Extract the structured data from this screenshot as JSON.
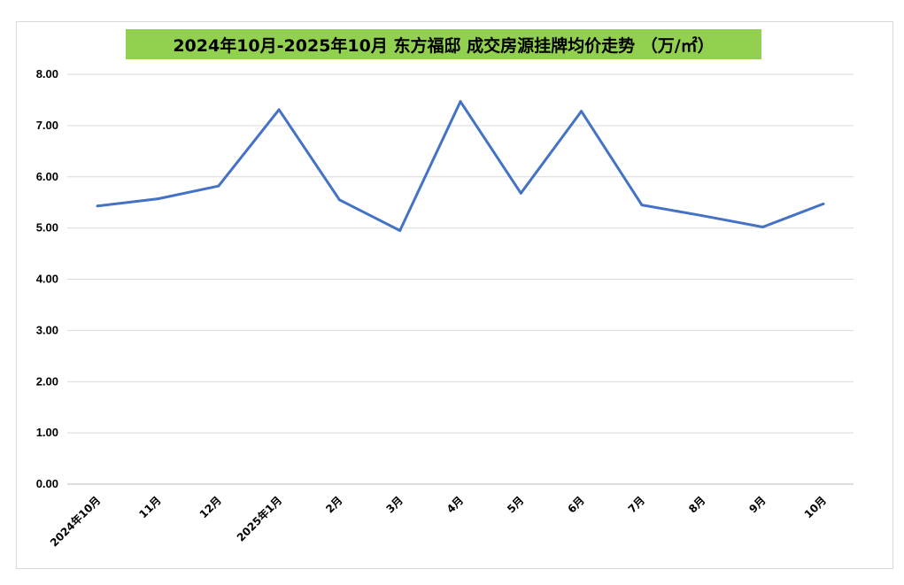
{
  "chart_data": {
    "type": "line",
    "title": "2024年10月-2025年10月 东方福邸 成交房源挂牌均价走势 （万/㎡）",
    "xlabel": "",
    "ylabel": "",
    "categories": [
      "2024年10月",
      "11月",
      "12月",
      "2025年1月",
      "2月",
      "3月",
      "4月",
      "5月",
      "6月",
      "7月",
      "8月",
      "9月",
      "10月"
    ],
    "series": [
      {
        "values": [
          5.43,
          5.57,
          5.82,
          7.31,
          5.55,
          4.95,
          7.47,
          5.68,
          7.28,
          5.45,
          5.24,
          5.02,
          5.47
        ]
      }
    ],
    "ylim": [
      0,
      8
    ],
    "yticks": [
      "0.00",
      "1.00",
      "2.00",
      "3.00",
      "4.00",
      "5.00",
      "6.00",
      "7.00",
      "8.00"
    ],
    "grid": true,
    "line_color": "#4472c4",
    "title_background": "#92d050"
  }
}
